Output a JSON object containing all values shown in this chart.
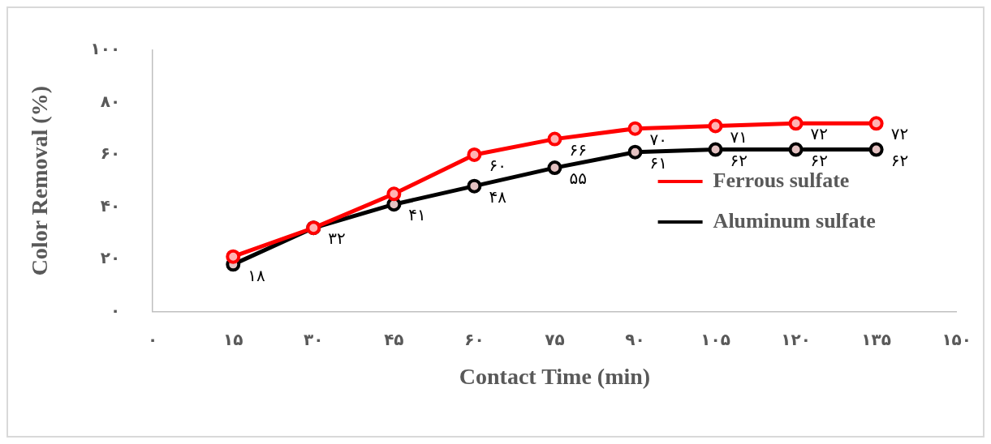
{
  "chart_data": {
    "type": "line",
    "xlabel": "Contact Time (min)",
    "ylabel": "Color Removal (%)",
    "x": [
      15,
      30,
      45,
      60,
      75,
      90,
      105,
      120,
      135
    ],
    "xlim": [
      0,
      150
    ],
    "xticks": [
      {
        "value": 0,
        "label": "۰"
      },
      {
        "value": 15,
        "label": "۱۵"
      },
      {
        "value": 30,
        "label": "۳۰"
      },
      {
        "value": 45,
        "label": "۴۵"
      },
      {
        "value": 60,
        "label": "۶۰"
      },
      {
        "value": 75,
        "label": "۷۵"
      },
      {
        "value": 90,
        "label": "۹۰"
      },
      {
        "value": 105,
        "label": "۱۰۵"
      },
      {
        "value": 120,
        "label": "۱۲۰"
      },
      {
        "value": 135,
        "label": "۱۳۵"
      },
      {
        "value": 150,
        "label": "۱۵۰"
      }
    ],
    "ylim": [
      0,
      100
    ],
    "yticks": [
      {
        "value": 0,
        "label": "۰"
      },
      {
        "value": 20,
        "label": "۲۰"
      },
      {
        "value": 40,
        "label": "۴۰"
      },
      {
        "value": 60,
        "label": "۶۰"
      },
      {
        "value": 80,
        "label": "۸۰"
      },
      {
        "value": 100,
        "label": "۱۰۰"
      }
    ],
    "series": [
      {
        "name": "Ferrous sulfate",
        "color": "#ff0000",
        "values": [
          21,
          32,
          45,
          60,
          66,
          70,
          71,
          72,
          72
        ],
        "value_labels": [
          null,
          null,
          null,
          "۶۰",
          "۶۶",
          "۷۰",
          "۷۱",
          "۷۲",
          "۷۲"
        ]
      },
      {
        "name": "Aluminum sulfate",
        "color": "#000000",
        "values": [
          18,
          32,
          41,
          48,
          55,
          61,
          62,
          62,
          62
        ],
        "value_labels": [
          "۱۸",
          "۳۲",
          "۴۱",
          "۴۸",
          "۵۵",
          "۶۱",
          "۶۲",
          "۶۲",
          "۶۲"
        ]
      }
    ],
    "grid": false,
    "legend": "right",
    "marker": "circle",
    "line_style": "solid"
  }
}
